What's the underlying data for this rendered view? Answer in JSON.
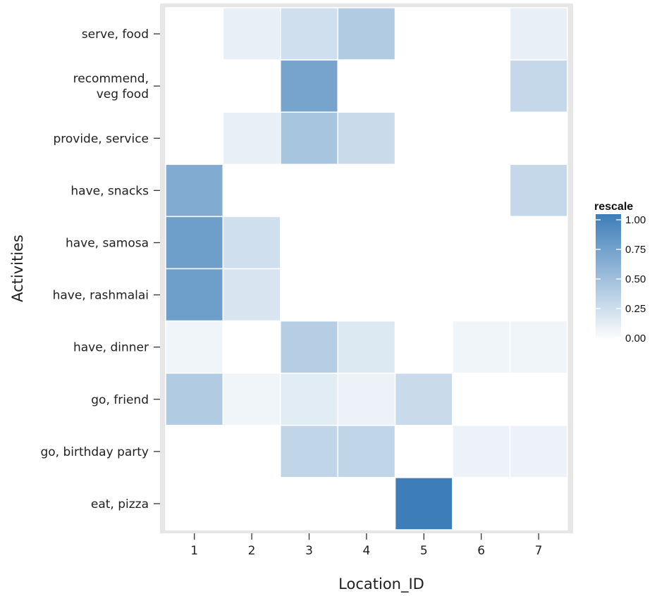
{
  "chart_data": {
    "type": "heatmap",
    "title": "",
    "xlabel": "Location_ID",
    "ylabel": "Activities",
    "x_categories": [
      "1",
      "2",
      "3",
      "4",
      "5",
      "6",
      "7"
    ],
    "y_categories": [
      [
        "serve, food"
      ],
      [
        "recommend,",
        "veg food"
      ],
      [
        "provide, service"
      ],
      [
        "have, snacks"
      ],
      [
        "have, samosa"
      ],
      [
        "have, rashmalai"
      ],
      [
        "have, dinner"
      ],
      [
        "go, friend"
      ],
      [
        "go, birthday party"
      ],
      [
        "eat, pizza"
      ]
    ],
    "values": [
      [
        0.0,
        0.12,
        0.25,
        0.4,
        0.0,
        0.0,
        0.12
      ],
      [
        0.0,
        0.0,
        0.7,
        0.0,
        0.0,
        0.0,
        0.3
      ],
      [
        0.0,
        0.12,
        0.45,
        0.28,
        0.0,
        0.0,
        0.0
      ],
      [
        0.65,
        0.0,
        0.0,
        0.0,
        0.0,
        0.0,
        0.3
      ],
      [
        0.75,
        0.25,
        0.0,
        0.0,
        0.0,
        0.0,
        0.0
      ],
      [
        0.75,
        0.2,
        0.0,
        0.0,
        0.0,
        0.0,
        0.0
      ],
      [
        0.08,
        0.0,
        0.38,
        0.18,
        0.0,
        0.08,
        0.08
      ],
      [
        0.4,
        0.08,
        0.15,
        0.1,
        0.28,
        0.0,
        0.0
      ],
      [
        0.0,
        0.0,
        0.32,
        0.32,
        0.0,
        0.1,
        0.1
      ],
      [
        0.0,
        0.0,
        0.0,
        0.0,
        1.0,
        0.0,
        0.0
      ]
    ],
    "legend": {
      "title": "rescale",
      "ticks": [
        "1.00",
        "0.75",
        "0.50",
        "0.25",
        "0.00"
      ],
      "placement": "right",
      "color_low": "#ffffff",
      "color_high": "#3d7db8"
    },
    "grid": false,
    "panel_border_color": "#e6e6e6",
    "cell_border_color": "#ffffff"
  }
}
